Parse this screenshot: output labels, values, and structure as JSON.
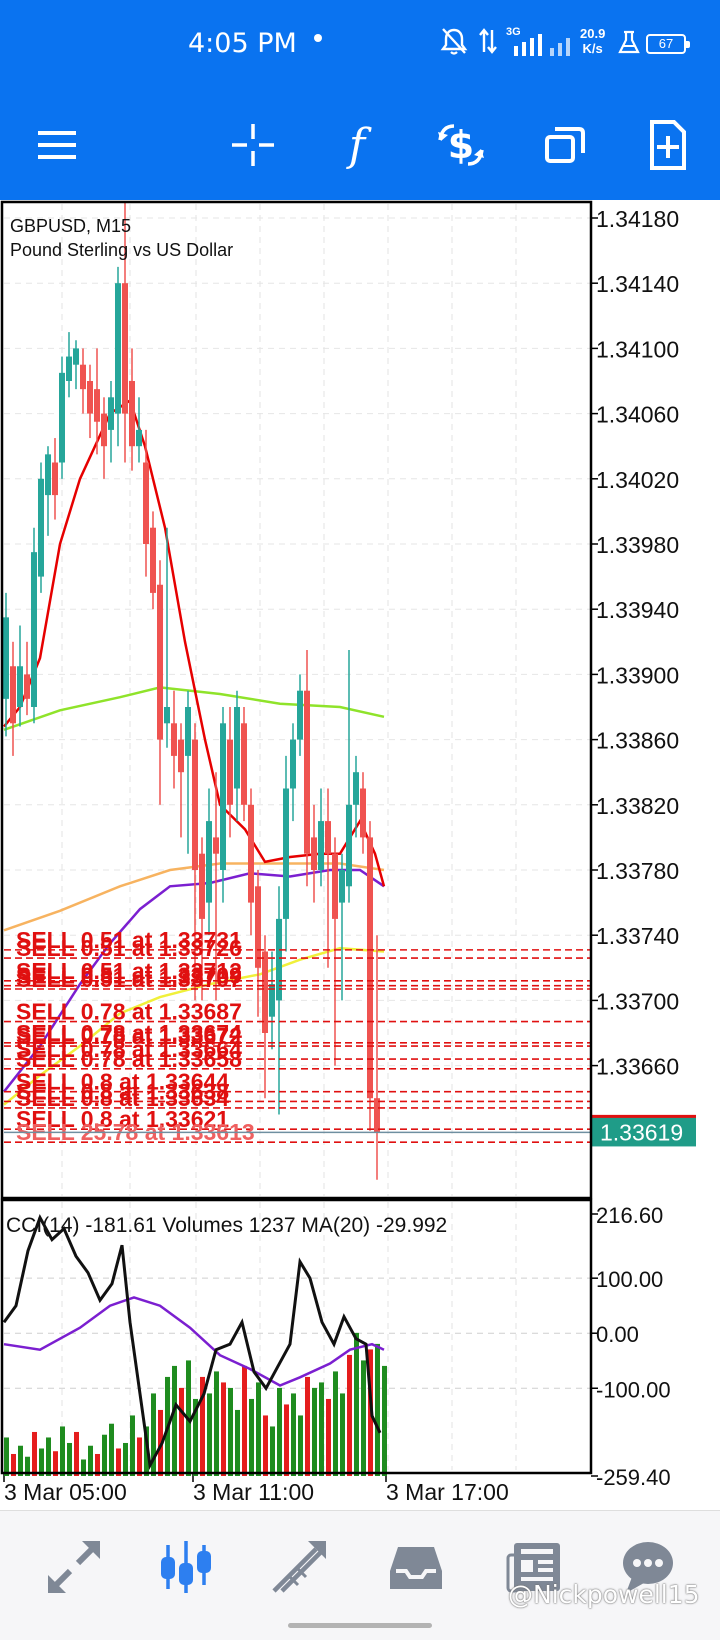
{
  "status_bar": {
    "time": "4:05 PM",
    "network_type": "3G",
    "net_speed_value": "20.9",
    "net_speed_unit": "K/s",
    "battery": "67",
    "icons": [
      "mute-icon",
      "data-transfer-icon",
      "signal-icon",
      "beaker-icon",
      "battery-icon"
    ]
  },
  "toolbar": {
    "items": [
      "menu-icon",
      "crosshair-icon",
      "indicators-icon",
      "currency-exchange-icon",
      "windows-icon",
      "new-order-icon"
    ]
  },
  "chart": {
    "symbol": "GBPUSD, M15",
    "description": "Pound Sterling vs US Dollar",
    "current_price": "1.33619",
    "price_labels": [
      "1.34180",
      "1.34140",
      "1.34100",
      "1.34060",
      "1.34020",
      "1.33980",
      "1.33940",
      "1.33900",
      "1.33860",
      "1.33820",
      "1.33780",
      "1.33740",
      "1.33700",
      "1.33660"
    ],
    "orders": [
      {
        "text": "SELL 0.51 at 1.33731",
        "price": 1.33731
      },
      {
        "text": "SELL 0.51 at 1.33726",
        "price": 1.33726
      },
      {
        "text": "SELL 0.51 at 1.33712",
        "price": 1.33712
      },
      {
        "text": "SELL 0.51 at 1.33709",
        "price": 1.33709
      },
      {
        "text": "SELL 0.51 at 1.33707",
        "price": 1.33707
      },
      {
        "text": "SELL 0.78 at 1.33687",
        "price": 1.33687
      },
      {
        "text": "SELL 0.78 at 1.33674",
        "price": 1.33674
      },
      {
        "text": "SELL 0.78 at 1.33672",
        "price": 1.33672
      },
      {
        "text": "SELL 0.78 at 1.33664",
        "price": 1.33664
      },
      {
        "text": "SELL 0.78 at 1.33658",
        "price": 1.33658
      },
      {
        "text": "SELL 0.8 at 1.33644",
        "price": 1.33644
      },
      {
        "text": "SELL 0.8 at 1.33638",
        "price": 1.33638
      },
      {
        "text": "SELL 0.8 at 1.33634",
        "price": 1.33634
      },
      {
        "text": "SELL 0.8 at 1.33621",
        "price": 1.33621
      },
      {
        "text": "SELL 25.78 at 1.33613",
        "price": 1.33613
      }
    ],
    "colors": {
      "bull": "#26a69a",
      "bear": "#ef5350",
      "ma_red": "#e60000",
      "ma_green": "#8fe32a",
      "ma_orange": "#f7b360",
      "ma_purple": "#7b1fd0",
      "ma_yellow": "#f0f03a",
      "order_line": "#e01010",
      "price_tag": "#1f9c88"
    }
  },
  "indicator": {
    "label": "CCI(14) -181.61 Volumes 1237 MA(20) -29.992",
    "levels": [
      "216.60",
      "100.00",
      "0.00",
      "-100.00",
      "-259.40"
    ]
  },
  "time_axis": {
    "labels": [
      "3 Mar 05:00",
      "3 Mar 11:00",
      "3 Mar 17:00"
    ]
  },
  "bottom_nav": {
    "items": [
      "quotes-icon",
      "chart-icon",
      "trade-icon",
      "history-icon",
      "news-icon",
      "chat-icon"
    ],
    "active": "chart-icon"
  },
  "watermark": "@Nickpowell15"
}
